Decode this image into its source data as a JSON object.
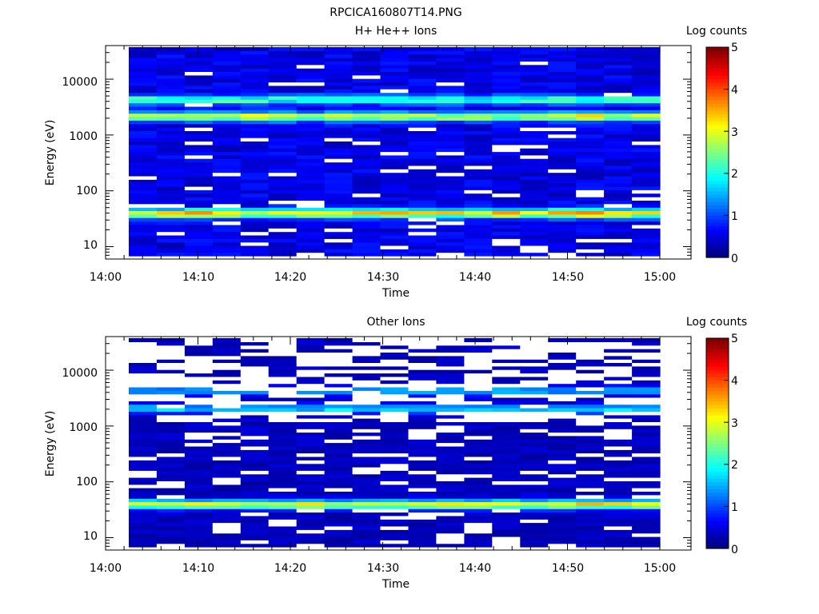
{
  "figure": {
    "title": "RPCICA160807T14.PNG"
  },
  "chart_data": [
    {
      "type": "heatmap",
      "title": "H+ He++ Ions",
      "xlabel": "Time",
      "ylabel": "Energy (eV)",
      "x_ticks": [
        "14:00",
        "14:10",
        "14:20",
        "14:30",
        "14:40",
        "14:50",
        "15:00"
      ],
      "x_range": [
        "14:00",
        "15:00"
      ],
      "y_scale": "log",
      "y_ticks": [
        "10",
        "100",
        "1000",
        "10000"
      ],
      "y_range": [
        6,
        40000
      ],
      "colorbar": {
        "label": "Log counts",
        "ticks": [
          "0",
          "1",
          "2",
          "3",
          "4",
          "5"
        ],
        "range": [
          0,
          5
        ]
      },
      "time_bins": [
        "14:02",
        "14:06",
        "14:09",
        "14:12",
        "14:15",
        "14:18",
        "14:21",
        "14:24",
        "14:27",
        "14:31",
        "14:34",
        "14:37",
        "14:40",
        "14:43",
        "14:46",
        "14:49",
        "14:52",
        "14:55",
        "14:58"
      ],
      "features": [
        {
          "energy_eV": 35,
          "log_counts": 3.0
        },
        {
          "energy_eV": 1900,
          "log_counts": 2.6
        },
        {
          "energy_eV": 3800,
          "log_counts": 1.8
        }
      ],
      "background_log_counts": 0.5
    },
    {
      "type": "heatmap",
      "title": "Other Ions",
      "xlabel": "Time",
      "ylabel": "Energy (eV)",
      "x_ticks": [
        "14:00",
        "14:10",
        "14:20",
        "14:30",
        "14:40",
        "14:50",
        "15:00"
      ],
      "x_range": [
        "14:00",
        "15:00"
      ],
      "y_scale": "log",
      "y_ticks": [
        "10",
        "100",
        "1000",
        "10000"
      ],
      "y_range": [
        6,
        40000
      ],
      "colorbar": {
        "label": "Log counts",
        "ticks": [
          "0",
          "1",
          "2",
          "3",
          "4",
          "5"
        ],
        "range": [
          0,
          5
        ]
      },
      "time_bins": [
        "14:02",
        "14:06",
        "14:09",
        "14:12",
        "14:15",
        "14:18",
        "14:21",
        "14:24",
        "14:27",
        "14:31",
        "14:34",
        "14:37",
        "14:40",
        "14:43",
        "14:46",
        "14:49",
        "14:52",
        "14:55",
        "14:58"
      ],
      "features": [
        {
          "energy_eV": 35,
          "log_counts": 3.0
        },
        {
          "energy_eV": 1800,
          "log_counts": 1.4
        },
        {
          "energy_eV": 3800,
          "log_counts": 1.2
        }
      ],
      "background_log_counts": 0.3
    }
  ]
}
